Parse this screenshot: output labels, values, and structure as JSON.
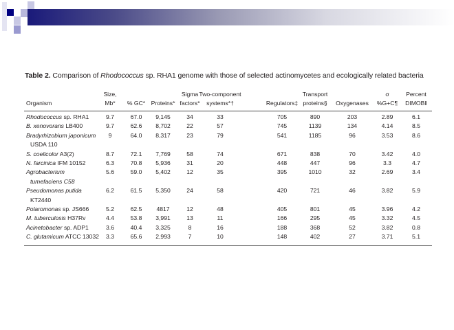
{
  "title": {
    "label": "Table 2.",
    "text_before": "Comparison of ",
    "italic": "Rhodococcus",
    "text_after": " sp. RHA1 genome with those of selected actinomycetes and ecologically related bacteria"
  },
  "columns": [
    {
      "line1": "",
      "line2": "Organism"
    },
    {
      "line1": "Size,",
      "line2": "Mb*"
    },
    {
      "line1": "",
      "line2": "% GC*"
    },
    {
      "line1": "",
      "line2": "Proteins*"
    },
    {
      "line1": "Sigma",
      "line2": "factors*"
    },
    {
      "line1": "Two-component",
      "line2": "systems*†"
    },
    {
      "line1": "",
      "line2": "Regulators‡"
    },
    {
      "line1": "Transport",
      "line2": "proteins§"
    },
    {
      "line1": "",
      "line2": "Oxygenases"
    },
    {
      "line1": "σ",
      "line2": "%G+C¶"
    },
    {
      "line1": "Percent",
      "line2": "DIMOB‖"
    }
  ],
  "rows": [
    {
      "italic": "Rhodococcus",
      "rest": " sp. RHA1",
      "line2": "",
      "values": [
        "9.7",
        "67.0",
        "9,145",
        "34",
        "33",
        "705",
        "890",
        "203",
        "2.89",
        "6.1"
      ]
    },
    {
      "italic": "B. xenovorans",
      "rest": " LB400",
      "line2": "",
      "values": [
        "9.7",
        "62.6",
        "8,702",
        "22",
        "57",
        "745",
        "1139",
        "134",
        "4.14",
        "8.5"
      ]
    },
    {
      "italic": "Bradyrhizobium japonicum",
      "rest": "",
      "line2": "USDA 110",
      "values": [
        "9",
        "64.0",
        "8,317",
        "23",
        "79",
        "541",
        "1185",
        "96",
        "3.53",
        "8.6"
      ]
    },
    {
      "italic": "S. coelicolor",
      "rest": " A3(2)",
      "line2": "",
      "values": [
        "8.7",
        "72.1",
        "7,769",
        "58",
        "74",
        "671",
        "838",
        "70",
        "3.42",
        "4.0"
      ]
    },
    {
      "italic": "N. farcinica",
      "rest": " IFM 10152",
      "line2": "",
      "values": [
        "6.3",
        "70.8",
        "5,936",
        "31",
        "20",
        "448",
        "447",
        "96",
        "3.3",
        "4.7"
      ]
    },
    {
      "italic": "Agrobacterium",
      "rest": "",
      "line2": "tumefaciens C58",
      "line2_italic": true,
      "values": [
        "5.6",
        "59.0",
        "5,402",
        "12",
        "35",
        "395",
        "1010",
        "32",
        "2.69",
        "3.4"
      ]
    },
    {
      "italic": "Pseudomonas putida",
      "rest": "",
      "line2": "KT2440",
      "values": [
        "6.2",
        "61.5",
        "5,350",
        "24",
        "58",
        "420",
        "721",
        "46",
        "3.82",
        "5.9"
      ]
    },
    {
      "italic": "Polaromonas",
      "rest": " sp. JS666",
      "line2": "",
      "values": [
        "5.2",
        "62.5",
        "4817",
        "12",
        "48",
        "405",
        "801",
        "45",
        "3.96",
        "4.2"
      ]
    },
    {
      "italic": "M. tuberculosis",
      "rest": " H37Rv",
      "line2": "",
      "values": [
        "4.4",
        "53.8",
        "3,991",
        "13",
        "11",
        "166",
        "295",
        "45",
        "3.32",
        "4.5"
      ]
    },
    {
      "italic": "Acinetobacter",
      "rest": " sp. ADP1",
      "line2": "",
      "values": [
        "3.6",
        "40.4",
        "3,325",
        "8",
        "16",
        "188",
        "368",
        "52",
        "3.82",
        "0.8"
      ]
    },
    {
      "italic": "C. glutamicum",
      "rest": " ATCC 13032",
      "line2": "",
      "values": [
        "3.3",
        "65.6",
        "2,993",
        "7",
        "10",
        "148",
        "402",
        "27",
        "3.71",
        "5.1"
      ]
    }
  ],
  "colors": {
    "bar_dark": "#1a1a7a",
    "square_dark": "#000080",
    "square_light": "#c8c8e4"
  }
}
